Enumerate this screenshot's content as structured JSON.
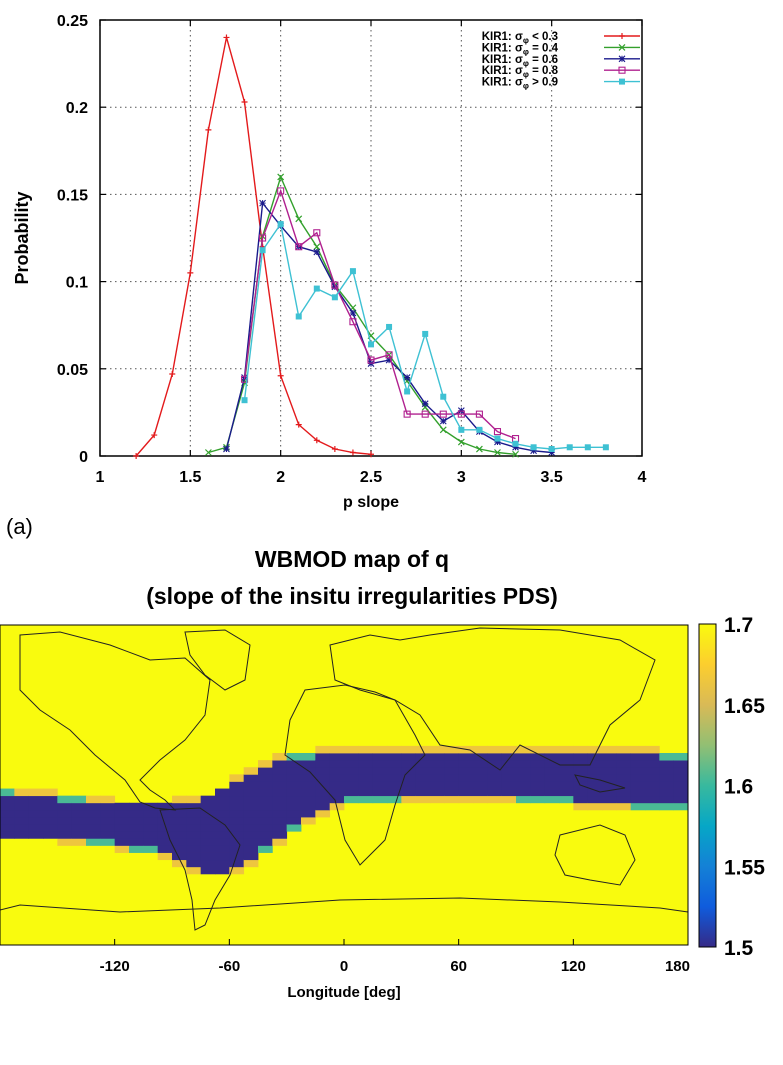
{
  "panel_label": "(a)",
  "chart_data": [
    {
      "type": "line",
      "title": "",
      "xlabel": "p slope",
      "ylabel": "Probability",
      "xlim": [
        1,
        4
      ],
      "ylim": [
        0,
        0.25
      ],
      "xticks": [
        "1",
        "1.5",
        "2",
        "2.5",
        "3",
        "3.5",
        "4"
      ],
      "yticks": [
        "0",
        "0.05",
        "0.1",
        "0.15",
        "0.2",
        "0.25"
      ],
      "grid": true,
      "legend_position": "top-right",
      "series": [
        {
          "name": "KIR1: σφ < 0.3",
          "legend_prefix": "KIR1: σ",
          "legend_sub": "φ",
          "legend_suffix": " < 0.3",
          "color": "#e31a1c",
          "marker": "plus",
          "x": [
            1.2,
            1.3,
            1.4,
            1.5,
            1.6,
            1.7,
            1.8,
            1.9,
            2.0,
            2.1,
            2.2,
            2.3,
            2.4,
            2.5
          ],
          "y": [
            0.0,
            0.012,
            0.047,
            0.105,
            0.187,
            0.24,
            0.203,
            0.12,
            0.046,
            0.018,
            0.009,
            0.004,
            0.002,
            0.001
          ]
        },
        {
          "name": "KIR1: σφ = 0.4",
          "legend_prefix": "KIR1: σ",
          "legend_sub": "φ",
          "legend_suffix": " = 0.4",
          "color": "#33a02c",
          "marker": "x",
          "x": [
            1.6,
            1.7,
            1.8,
            1.9,
            2.0,
            2.1,
            2.2,
            2.3,
            2.4,
            2.5,
            2.6,
            2.7,
            2.8,
            2.9,
            3.0,
            3.1,
            3.2,
            3.3
          ],
          "y": [
            0.002,
            0.005,
            0.042,
            0.126,
            0.16,
            0.136,
            0.12,
            0.098,
            0.085,
            0.069,
            0.058,
            0.043,
            0.028,
            0.015,
            0.008,
            0.004,
            0.002,
            0.001
          ]
        },
        {
          "name": "KIR1: σφ = 0.6",
          "legend_prefix": "KIR1: σ",
          "legend_sub": "φ",
          "legend_suffix": " = 0.6",
          "color": "#1a1a8c",
          "marker": "star",
          "x": [
            1.7,
            1.8,
            1.9,
            2.0,
            2.1,
            2.2,
            2.3,
            2.4,
            2.5,
            2.6,
            2.7,
            2.8,
            2.9,
            3.0,
            3.1,
            3.2,
            3.3,
            3.4,
            3.5
          ],
          "y": [
            0.004,
            0.045,
            0.145,
            0.132,
            0.12,
            0.117,
            0.097,
            0.082,
            0.053,
            0.055,
            0.045,
            0.03,
            0.02,
            0.026,
            0.014,
            0.008,
            0.005,
            0.003,
            0.002
          ]
        },
        {
          "name": "KIR1: σφ = 0.8",
          "legend_prefix": "KIR1: σ",
          "legend_sub": "φ",
          "legend_suffix": " = 0.8",
          "color": "#b0208f",
          "marker": "square",
          "x": [
            1.8,
            1.9,
            2.0,
            2.1,
            2.2,
            2.3,
            2.4,
            2.5,
            2.6,
            2.7,
            2.8,
            2.9,
            3.0,
            3.1,
            3.2,
            3.3
          ],
          "y": [
            0.044,
            0.125,
            0.152,
            0.12,
            0.128,
            0.098,
            0.077,
            0.055,
            0.058,
            0.024,
            0.024,
            0.024,
            0.024,
            0.024,
            0.014,
            0.01
          ]
        },
        {
          "name": "KIR1: σφ > 0.9",
          "legend_prefix": "KIR1: σ",
          "legend_sub": "φ",
          "legend_suffix": " > 0.9",
          "color": "#3ec1d3",
          "marker": "filled-square",
          "x": [
            1.8,
            1.9,
            2.0,
            2.1,
            2.2,
            2.3,
            2.4,
            2.5,
            2.6,
            2.7,
            2.8,
            2.9,
            3.0,
            3.1,
            3.2,
            3.3,
            3.4,
            3.5,
            3.6,
            3.7,
            3.8
          ],
          "y": [
            0.032,
            0.118,
            0.133,
            0.08,
            0.096,
            0.091,
            0.106,
            0.064,
            0.074,
            0.037,
            0.07,
            0.034,
            0.015,
            0.015,
            0.01,
            0.007,
            0.005,
            0.004,
            0.005,
            0.005,
            0.005
          ]
        }
      ]
    },
    {
      "type": "heatmap",
      "title": "WBMOD map of q",
      "subtitle": "(slope of the insitu irregularities PDS)",
      "xlabel": "Longitude [deg]",
      "xlim": [
        -180,
        180
      ],
      "ylim": [
        -90,
        90
      ],
      "xticks": [
        "-120",
        "-60",
        "0",
        "60",
        "120",
        "180"
      ],
      "colorbar": {
        "min": 1.5,
        "max": 1.7,
        "ticks": [
          "1.7",
          "1.65",
          "1.6",
          "1.55",
          "1.5"
        ],
        "colors": [
          "#352a87",
          "#0f5cdd",
          "#1481d6",
          "#06a7c6",
          "#38b99e",
          "#92bf73",
          "#d9ba56",
          "#fcce2e",
          "#f9fb0e"
        ]
      },
      "background_value": 1.7,
      "low_value": 1.5,
      "band_description": "Low-q band along the magnetic equator",
      "band": {
        "longitudes": [
          -180,
          -150,
          -120,
          -90,
          -75,
          -60,
          -45,
          -30,
          -15,
          0,
          30,
          60,
          90,
          120,
          150,
          180
        ],
        "upper_lat": [
          -5,
          -8,
          -12,
          -12,
          -10,
          -2,
          8,
          14,
          16,
          18,
          18,
          18,
          18,
          18,
          17,
          15
        ],
        "lower_lat": [
          -28,
          -28,
          -32,
          -38,
          -48,
          -48,
          -38,
          -25,
          -15,
          -8,
          -6,
          -6,
          -6,
          -8,
          -10,
          -12
        ]
      }
    }
  ]
}
